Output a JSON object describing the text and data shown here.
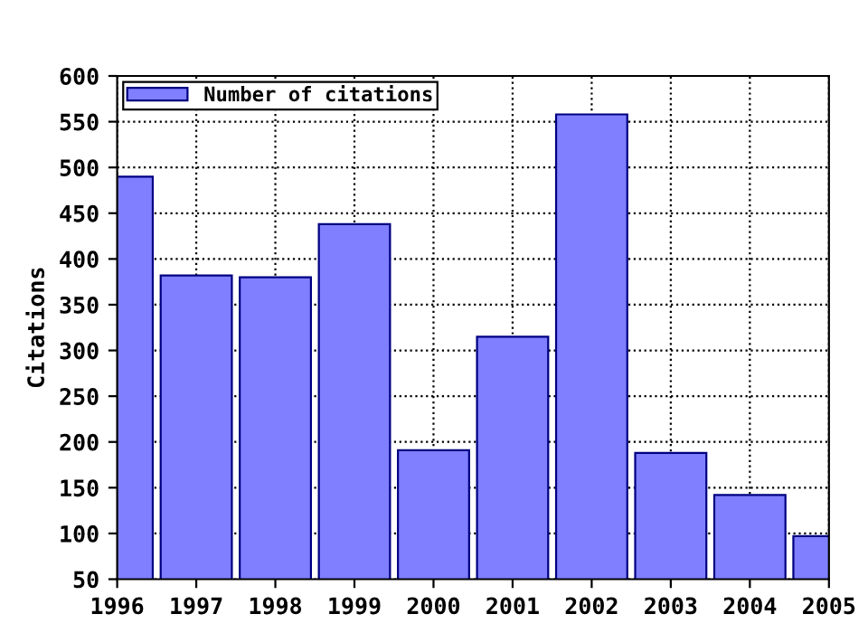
{
  "chart_data": {
    "type": "bar",
    "ylabel": "Citations",
    "x": [
      1996,
      1997,
      1998,
      1999,
      2000,
      2001,
      2002,
      2003,
      2004,
      2005
    ],
    "series": [
      {
        "name": "Number of citations",
        "color": "#7f7fff",
        "values": [
          490,
          382,
          380,
          438,
          191,
          315,
          558,
          188,
          142,
          97
        ]
      }
    ],
    "xlim": [
      1996,
      2005
    ],
    "xticks": [
      1996,
      1997,
      1998,
      1999,
      2000,
      2001,
      2002,
      2003,
      2004,
      2005
    ],
    "ylim": [
      50,
      600
    ],
    "yticks": [
      50,
      100,
      150,
      200,
      250,
      300,
      350,
      400,
      450,
      500,
      550,
      600
    ],
    "grid": true,
    "legend": "top left"
  }
}
